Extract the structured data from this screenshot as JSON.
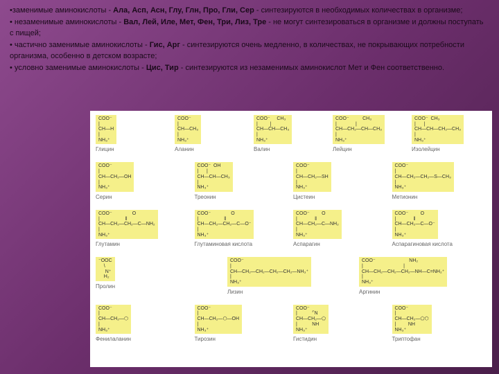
{
  "text": {
    "p1a": "•заменимые аминокислоты - ",
    "p1b": "Ала, Асп, Асн, Глу, Глн, Про, Гли, Сер",
    "p1c": "- синтезируются в необходимых количествах в организме;",
    "p2a": "• незаменимые аминокислоты - ",
    "p2b": "Вал, Лей, Иле, Мет, Фен, Три, Лиз, Тре",
    "p2c": "- не могут синтезироваться в организме и должны поступать с пищей;",
    "p3a": "• частично заменимые аминокислоты - ",
    "p3b": "Гис, Арг",
    "p3c": "- синтезируются очень медленно, в количествах, не покрывающих потребности организма, особенно в детском возрасте;",
    "p4a": "• условно заменимые аминокислоты - ",
    "p4b": "Цис, Тир",
    "p4c": "- синтезируются из незаменимых аминокислот Мет и Фен соответственно."
  },
  "aminos": {
    "r1": [
      {
        "f": "COO⁻\n|\nCH—H\n|\nNH₃⁺",
        "l": "Глицин"
      },
      {
        "f": "COO⁻\n|\nCH—CH₃\n|\nNH₃⁺",
        "l": "Аланин"
      },
      {
        "f": "COO⁻     CH₃\n|         |\nCH—CH—CH₃\n|\nNH₃⁺",
        "l": "Валин"
      },
      {
        "f": "COO⁻          CH₃\n|              |\nCH—CH₂—CH—CH₃\n|\nNH₃⁺",
        "l": "Лейцин"
      },
      {
        "f": "COO⁻  CH₃\n|      |\nCH—CH—CH₂—CH₃\n|\nNH₃⁺",
        "l": "Изолейцин"
      }
    ],
    "r2": [
      {
        "f": "COO⁻\n|\nCH—CH₂—OH\n|\nNH₃⁺",
        "l": "Серин"
      },
      {
        "f": "COO⁻  OH\n|      |\nCH—CH—CH₃\n|\nNH₃⁺",
        "l": "Треонин"
      },
      {
        "f": "COO⁻\n|\nCH—CH₂—SH\n|\nNH₃⁺",
        "l": "Цистеин"
      },
      {
        "f": "COO⁻\n|\nCH—CH₂—CH₂—S—CH₃\n|\nNH₃⁺",
        "l": "Метионин"
      }
    ],
    "r3": [
      {
        "f": "COO⁻               O\n|                   ‖\nCH—CH₂—CH₂—C—NH₂\n|\nNH₃⁺",
        "l": "Глутамин"
      },
      {
        "f": "COO⁻               O\n|                   ‖\nCH—CH₂—CH₂—C—O⁻\n|\nNH₃⁺",
        "l": "Глутаминовая\nкислота"
      },
      {
        "f": "COO⁻         O\n|             ‖\nCH—CH₂—C—NH₂\n|\nNH₃⁺",
        "l": "Аспарагин"
      },
      {
        "f": "COO⁻         O\n|             ‖\nCH—CH₂—C—O⁻\n|\nNH₃⁺",
        "l": "Аспарагиновая\nкислота"
      }
    ],
    "r4": [
      {
        "f": "⁻OOC\n    \\\n     N⁺\n    H₂",
        "l": "Пролин"
      },
      {
        "f": "COO⁻\n|\nCH—CH₂—CH₂—CH₂—CH₂—NH₃⁺\n|\nNH₃⁺",
        "l": "Лизин"
      },
      {
        "f": "COO⁻                         NH₂\n|                              |\nCH—CH₂—CH₂—CH₂—NH—C=NH₂⁺\n|\nNH₃⁺",
        "l": "Аргинин"
      }
    ],
    "r5": [
      {
        "f": "COO⁻\n|\nCH—CH₂—⬡\n|\nNH₃⁺",
        "l": "Фенилаланин"
      },
      {
        "f": "COO⁻\n|\nCH—CH₂—⬡—OH\n|\nNH₃⁺",
        "l": "Тирозин"
      },
      {
        "f": "COO⁻\n|           ⌜N\nCH—CH₂—⬠\n|           NH\nNH₃⁺",
        "l": "Гистидин"
      },
      {
        "f": "COO⁻\n|\nCH—CH₂—⬠⬡\n|         NH\nNH₃⁺",
        "l": "Триптофан"
      }
    ]
  }
}
